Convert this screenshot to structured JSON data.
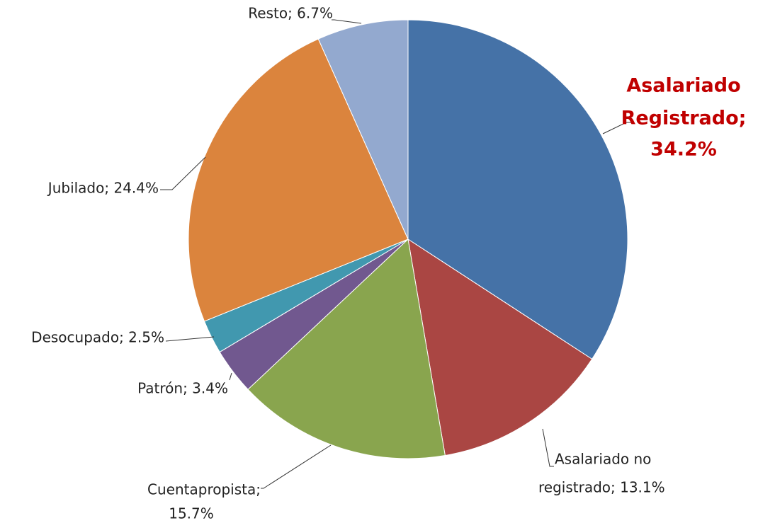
{
  "chart_data": {
    "type": "pie",
    "values": [
      34.2,
      13.1,
      15.7,
      3.4,
      2.5,
      24.4,
      6.7
    ],
    "value_labels": [
      [
        "Asalariado",
        "Registrado;",
        "34.2%"
      ],
      [
        "Asalariado no",
        "registrado; 13.1%"
      ],
      [
        "Cuentapropista;",
        "15.7%"
      ],
      [
        "Patrón; 3.4%"
      ],
      [
        "Desocupado; 2.5%"
      ],
      [
        "Jubilado; 24.4%"
      ],
      [
        "Resto; 6.7%"
      ]
    ],
    "colors": [
      "#4572a7",
      "#aa4643",
      "#89a54e",
      "#71588f",
      "#4198af",
      "#db843d",
      "#93a9cf"
    ]
  }
}
